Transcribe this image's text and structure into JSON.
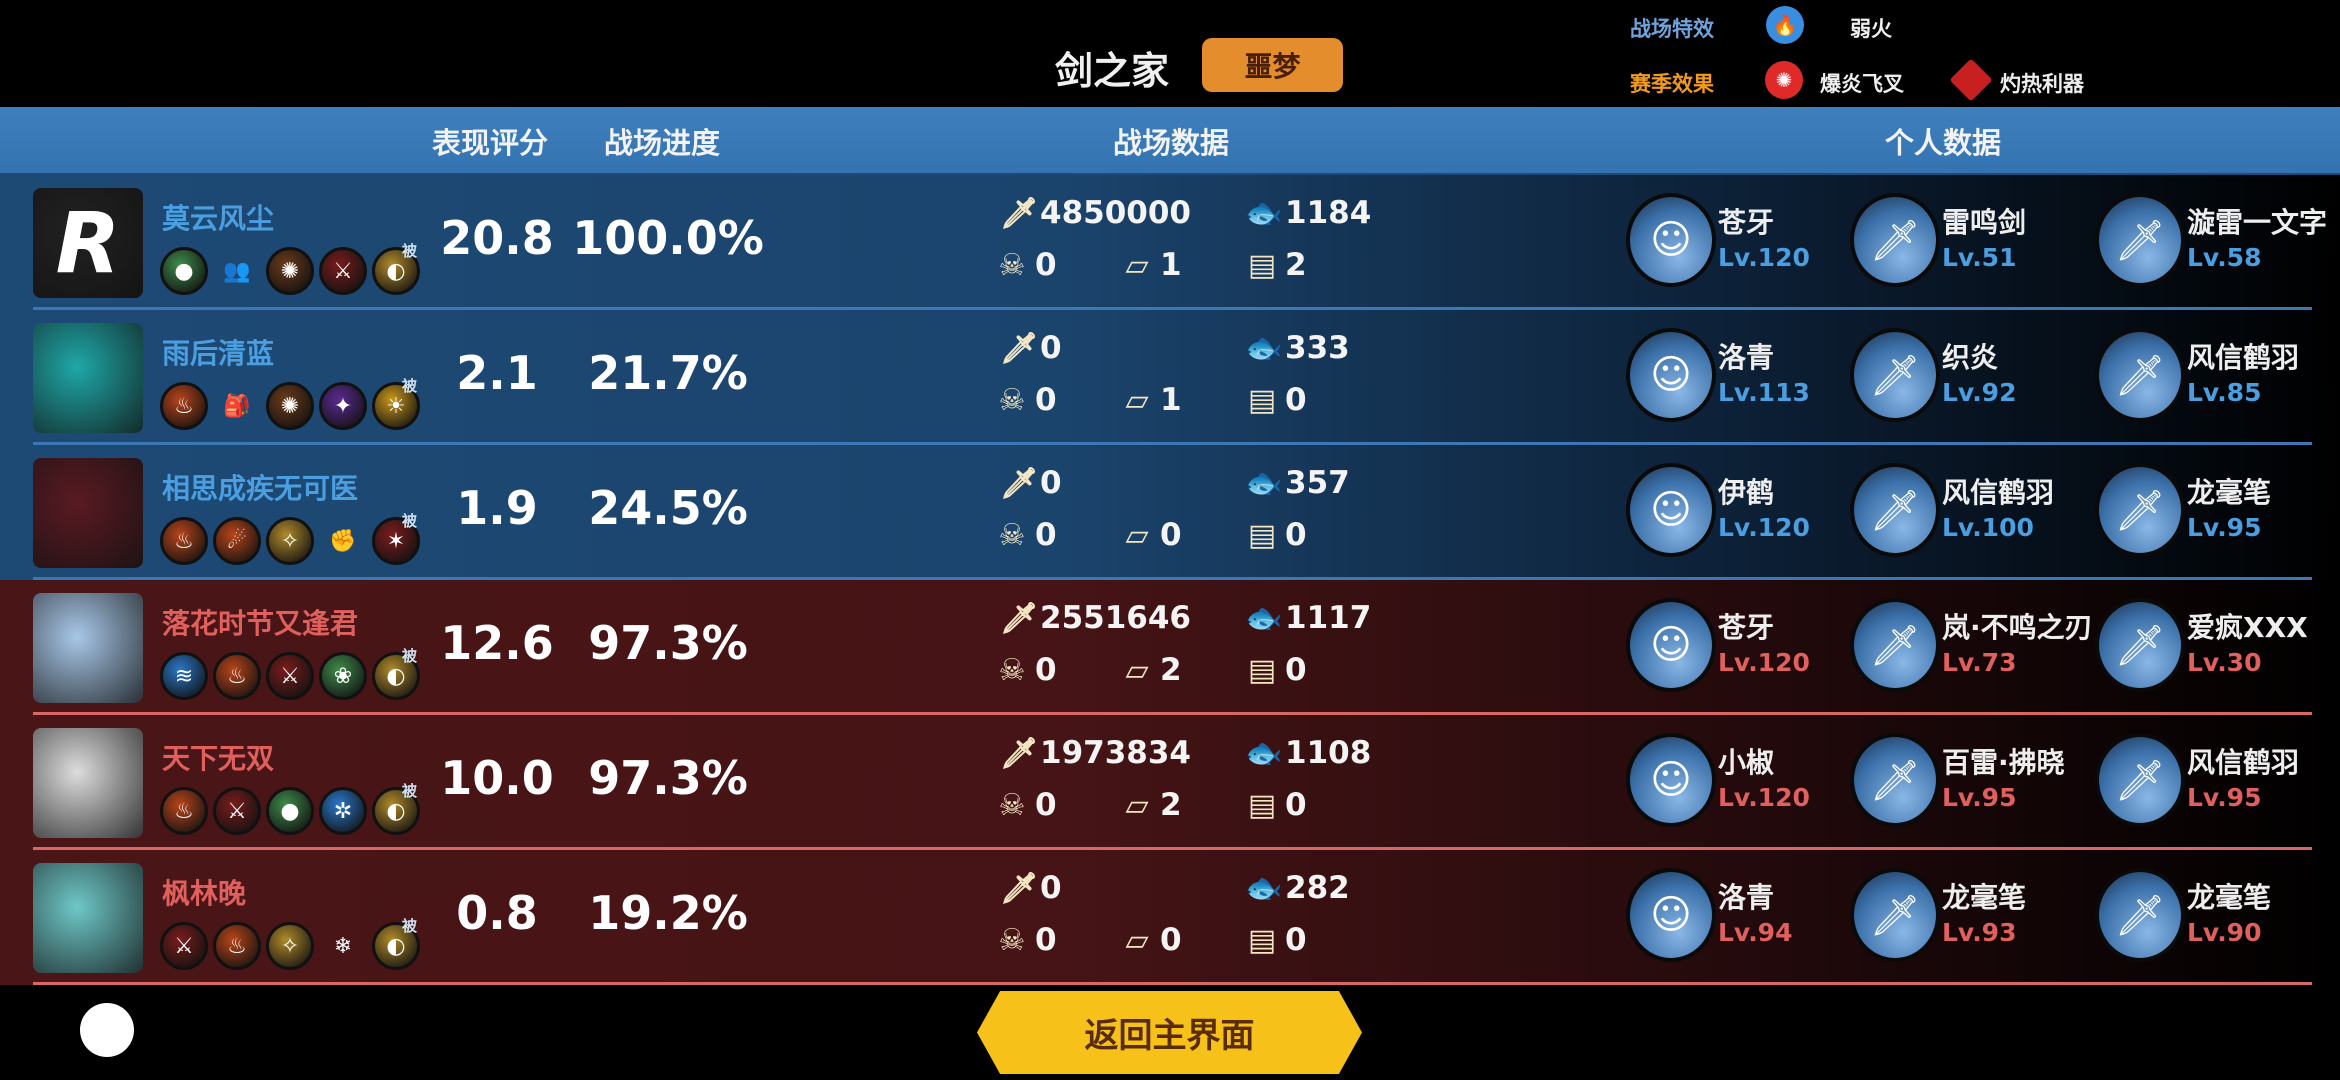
{
  "header": {
    "title": "剑之家",
    "mode_badge": "噩梦",
    "battlefield_effect_label": "战场特效",
    "battlefield_effect_icon": "blue-flame-icon",
    "battlefield_effect": "弱火",
    "season_effect_label": "赛季效果",
    "season_effects": [
      {
        "icon": "red-fork-icon",
        "label": "爆炎飞叉"
      },
      {
        "icon": "red-diamond-blade-icon",
        "label": "灼热利器"
      }
    ]
  },
  "columns": {
    "score": "表现评分",
    "progress": "战场进度",
    "battle_data": "战场数据",
    "personal_data": "个人数据"
  },
  "colors": {
    "team_blue": "#4b9fe0",
    "team_red": "#e0605e",
    "badge": "#e48d2c",
    "return_button": "#f6c21a"
  },
  "skill_colors": {
    "green": "#3f8a4a",
    "brown": "#6a3a1a",
    "darkred": "#7a1c1c",
    "gold": "#b08a2a",
    "orange": "#b8441a",
    "purple": "#5a2a90",
    "blue": "#2a78c8",
    "yellow": "#c8961a"
  },
  "players": [
    {
      "team": "blue",
      "name": "莫云风尘",
      "avatar_letter": "R",
      "avatar_bg": "#222",
      "skills": [
        {
          "c": "green",
          "g": "●"
        },
        {
          "c": "bare",
          "g": "👥",
          "icon": "fire-people-icon"
        },
        {
          "c": "brown",
          "g": "✺"
        },
        {
          "c": "darkred",
          "g": "⚔"
        },
        {
          "c": "gold",
          "g": "◐",
          "passive": "被"
        }
      ],
      "score": "20.8",
      "progress": "100.0%",
      "stats": {
        "damage": "4850000",
        "fish": "1184",
        "kills": "0",
        "cards": "1",
        "chests": "2"
      },
      "equipment": [
        {
          "name": "苍牙",
          "lv": "Lv.120"
        },
        {
          "name": "雷鸣剑",
          "lv": "Lv.51"
        },
        {
          "name": "漩雷一文字",
          "lv": "Lv.58"
        }
      ]
    },
    {
      "team": "blue",
      "name": "雨后清蓝",
      "avatar_letter": "",
      "avatar_bg": "#1fa8a8",
      "skills": [
        {
          "c": "orange",
          "g": "♨"
        },
        {
          "c": "bare",
          "g": "🎒",
          "icon": "pouch-icon"
        },
        {
          "c": "brown",
          "g": "✺"
        },
        {
          "c": "purple",
          "g": "✦"
        },
        {
          "c": "yellow",
          "g": "☀",
          "passive": "被"
        }
      ],
      "score": "2.1",
      "progress": "21.7%",
      "stats": {
        "damage": "0",
        "fish": "333",
        "kills": "0",
        "cards": "1",
        "chests": "0"
      },
      "equipment": [
        {
          "name": "洛青",
          "lv": "Lv.113"
        },
        {
          "name": "织炎",
          "lv": "Lv.92"
        },
        {
          "name": "风信鹤羽",
          "lv": "Lv.85"
        }
      ]
    },
    {
      "team": "blue",
      "name": "相思成疾无可医",
      "avatar_letter": "",
      "avatar_bg": "#5a1a22",
      "skills": [
        {
          "c": "orange",
          "g": "♨"
        },
        {
          "c": "orange",
          "g": "☄"
        },
        {
          "c": "gold",
          "g": "✧"
        },
        {
          "c": "bare",
          "g": "✊",
          "icon": "fist-icon"
        },
        {
          "c": "darkred",
          "g": "✶",
          "passive": "被"
        }
      ],
      "score": "1.9",
      "progress": "24.5%",
      "stats": {
        "damage": "0",
        "fish": "357",
        "kills": "0",
        "cards": "0",
        "chests": "0"
      },
      "equipment": [
        {
          "name": "伊鹤",
          "lv": "Lv.120"
        },
        {
          "name": "风信鹤羽",
          "lv": "Lv.100"
        },
        {
          "name": "龙毫笔",
          "lv": "Lv.95"
        }
      ]
    },
    {
      "team": "red",
      "name": "落花时节又逢君",
      "avatar_letter": "",
      "avatar_bg": "#a8c8e8",
      "skills": [
        {
          "c": "blue",
          "g": "≋"
        },
        {
          "c": "orange",
          "g": "♨"
        },
        {
          "c": "darkred",
          "g": "⚔"
        },
        {
          "c": "green",
          "g": "❀"
        },
        {
          "c": "gold",
          "g": "◐",
          "passive": "被"
        }
      ],
      "score": "12.6",
      "progress": "97.3%",
      "stats": {
        "damage": "2551646",
        "fish": "1117",
        "kills": "0",
        "cards": "2",
        "chests": "0"
      },
      "equipment": [
        {
          "name": "苍牙",
          "lv": "Lv.120"
        },
        {
          "name": "岚·不鸣之刃",
          "lv": "Lv.73"
        },
        {
          "name": "爱疯XXX",
          "lv": "Lv.30"
        }
      ]
    },
    {
      "team": "red",
      "name": "天下无双",
      "avatar_letter": "",
      "avatar_bg": "#ddd",
      "skills": [
        {
          "c": "orange",
          "g": "♨"
        },
        {
          "c": "darkred",
          "g": "⚔"
        },
        {
          "c": "green",
          "g": "●"
        },
        {
          "c": "blue",
          "g": "✲"
        },
        {
          "c": "gold",
          "g": "◐",
          "passive": "被"
        }
      ],
      "score": "10.0",
      "progress": "97.3%",
      "stats": {
        "damage": "1973834",
        "fish": "1108",
        "kills": "0",
        "cards": "2",
        "chests": "0"
      },
      "equipment": [
        {
          "name": "小椒",
          "lv": "Lv.120"
        },
        {
          "name": "百雷·拂晓",
          "lv": "Lv.95"
        },
        {
          "name": "风信鹤羽",
          "lv": "Lv.95"
        }
      ]
    },
    {
      "team": "red",
      "name": "枫林晚",
      "avatar_letter": "",
      "avatar_bg": "#6ec8c8",
      "skills": [
        {
          "c": "darkred",
          "g": "⚔"
        },
        {
          "c": "orange",
          "g": "♨"
        },
        {
          "c": "gold",
          "g": "✧"
        },
        {
          "c": "bare",
          "g": "❄",
          "icon": "snowflake-icon"
        },
        {
          "c": "gold",
          "g": "◐",
          "passive": "被"
        }
      ],
      "score": "0.8",
      "progress": "19.2%",
      "stats": {
        "damage": "0",
        "fish": "282",
        "kills": "0",
        "cards": "0",
        "chests": "0"
      },
      "equipment": [
        {
          "name": "洛青",
          "lv": "Lv.94"
        },
        {
          "name": "龙毫笔",
          "lv": "Lv.93"
        },
        {
          "name": "龙毫笔",
          "lv": "Lv.90"
        }
      ]
    }
  ],
  "footer": {
    "return_button": "返回主界面"
  }
}
